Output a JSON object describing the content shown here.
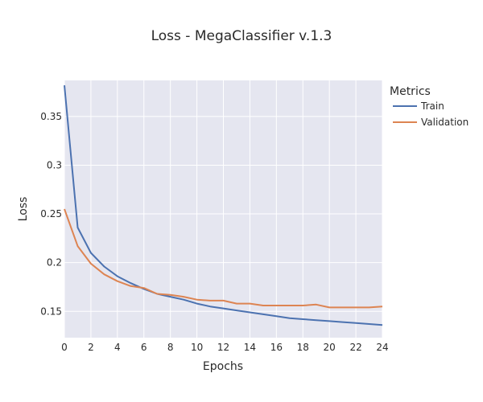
{
  "chart_data": {
    "type": "line",
    "title": "Loss - MegaClassifier v.1.3",
    "xlabel": "Epochs",
    "ylabel": "Loss",
    "xlim": [
      0,
      24
    ],
    "ylim": [
      0.123,
      0.387
    ],
    "x_ticks": [
      0,
      2,
      4,
      6,
      8,
      10,
      12,
      14,
      16,
      18,
      20,
      22,
      24
    ],
    "y_ticks": [
      0.15,
      0.2,
      0.25,
      0.3,
      0.35
    ],
    "y_tick_labels": [
      "0.15",
      "0.2",
      "0.25",
      "0.3",
      "0.35"
    ],
    "grid": true,
    "legend": {
      "title": "Metrics",
      "placement": "right"
    },
    "x": [
      0,
      1,
      2,
      3,
      4,
      5,
      6,
      7,
      8,
      9,
      10,
      11,
      12,
      13,
      14,
      15,
      16,
      17,
      18,
      19,
      20,
      21,
      22,
      23,
      24
    ],
    "series": [
      {
        "name": "Train",
        "color": "#4c72b0",
        "values": [
          0.382,
          0.236,
          0.21,
          0.196,
          0.186,
          0.179,
          0.173,
          0.168,
          0.165,
          0.162,
          0.158,
          0.155,
          0.153,
          0.151,
          0.149,
          0.147,
          0.145,
          0.143,
          0.142,
          0.141,
          0.14,
          0.139,
          0.138,
          0.137,
          0.136
        ]
      },
      {
        "name": "Validation",
        "color": "#dd8452",
        "values": [
          0.255,
          0.217,
          0.199,
          0.188,
          0.181,
          0.176,
          0.174,
          0.168,
          0.167,
          0.165,
          0.162,
          0.161,
          0.161,
          0.158,
          0.158,
          0.156,
          0.156,
          0.156,
          0.156,
          0.157,
          0.154,
          0.154,
          0.154,
          0.154,
          0.155
        ]
      }
    ]
  }
}
